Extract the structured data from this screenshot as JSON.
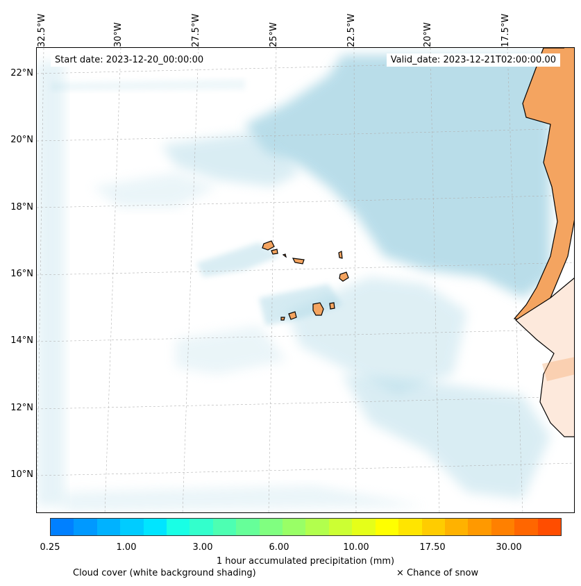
{
  "longitude_labels": [
    "32.5°W",
    "30°W",
    "27.5°W",
    "25°W",
    "22.5°W",
    "20°W",
    "17.5°W"
  ],
  "latitude_labels": [
    "22°N",
    "20°N",
    "18°N",
    "16°N",
    "14°N",
    "12°N",
    "10°N"
  ],
  "start_date": "Start date: 2023-12-20_00:00:00",
  "valid_date": "Valid_date: 2023-12-21T02:00:00.00",
  "colors": {
    "cloud": "#add8e6",
    "land": "#f4a460",
    "coast": "#000000"
  },
  "colorbar": {
    "colors": [
      "#0080ff",
      "#0099ff",
      "#00b2ff",
      "#00ccff",
      "#00e5ff",
      "#19ffe5",
      "#33ffcc",
      "#4dffb2",
      "#66ff99",
      "#80ff80",
      "#99ff66",
      "#b2ff4d",
      "#ccff33",
      "#e5ff19",
      "#ffff00",
      "#ffe500",
      "#ffcc00",
      "#ffb200",
      "#ff9900",
      "#ff8000",
      "#ff6600",
      "#ff4d00"
    ],
    "tick_labels": [
      "0.25",
      "1.00",
      "3.00",
      "6.00",
      "10.00",
      "17.50",
      "30.00"
    ],
    "title": "1 hour accumulated precipitation (mm)"
  },
  "legend": {
    "cloud_cover": "Cloud cover (white background shading)",
    "snow": "× Chance of snow"
  }
}
